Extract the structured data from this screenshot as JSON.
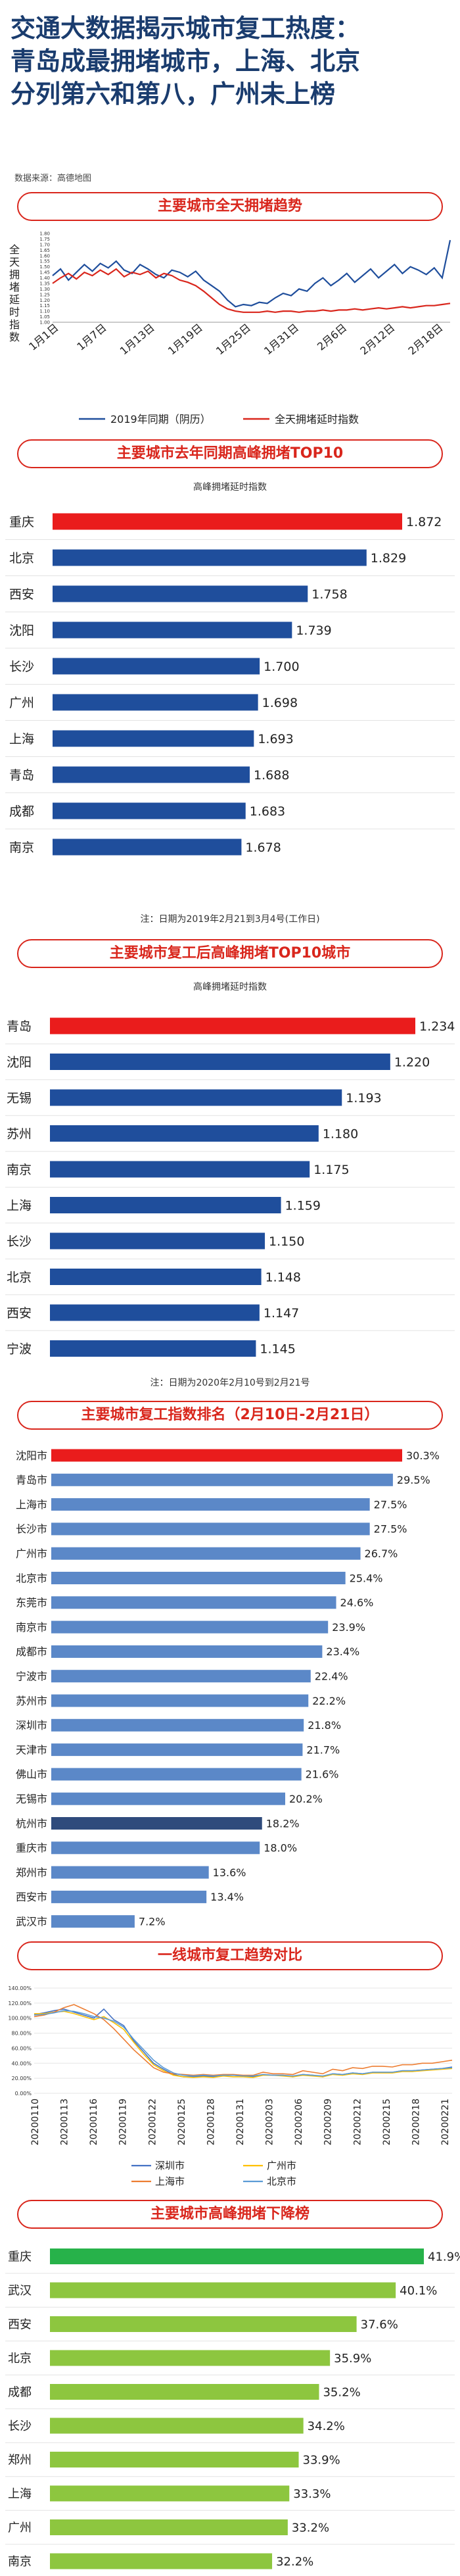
{
  "header": {
    "title_lines": [
      "交通大数据揭示城市复工热度：",
      "青岛成最拥堵城市，上海、北京",
      "分列第六和第八，广州未上榜"
    ],
    "source": "数据来源：高德地图"
  },
  "sections": {
    "trend": "主要城市全天拥堵趋势",
    "top10_last": "主要城市去年同期高峰拥堵TOP10",
    "top10_now": "主要城市复工后高峰拥堵TOP10城市",
    "resume": "主要城市复工指数排名（2月10日-2月21日）",
    "tier1": "一线城市复工趋势对比",
    "decline": "主要城市高峰拥堵下降榜"
  },
  "chart_data": [
    {
      "type": "line",
      "title": "主要城市全天拥堵趋势",
      "ylabel": "全天拥堵延时指数",
      "ylim": [
        1.0,
        1.8
      ],
      "yticks": [
        "1.00",
        "1.05",
        "1.10",
        "1.15",
        "1.20",
        "1.25",
        "1.30",
        "1.35",
        "1.40",
        "1.45",
        "1.50",
        "1.55",
        "1.60",
        "1.65",
        "1.70",
        "1.75",
        "1.80"
      ],
      "xticks": [
        "1月1日",
        "1月7日",
        "1月13日",
        "1月19日",
        "1月25日",
        "1月31日",
        "2月6日",
        "2月12日",
        "2月18日"
      ],
      "series": [
        {
          "name": "2019年同期（阴历）",
          "color": "#1f4e9c",
          "values": [
            1.42,
            1.48,
            1.38,
            1.45,
            1.52,
            1.46,
            1.53,
            1.49,
            1.55,
            1.47,
            1.44,
            1.52,
            1.48,
            1.43,
            1.4,
            1.47,
            1.45,
            1.41,
            1.46,
            1.38,
            1.33,
            1.28,
            1.2,
            1.14,
            1.16,
            1.15,
            1.18,
            1.17,
            1.22,
            1.26,
            1.24,
            1.3,
            1.28,
            1.35,
            1.4,
            1.33,
            1.38,
            1.44,
            1.36,
            1.42,
            1.48,
            1.4,
            1.46,
            1.52,
            1.44,
            1.5,
            1.47,
            1.43,
            1.49,
            1.4,
            1.74
          ]
        },
        {
          "name": "全天拥堵延时指数",
          "color": "#d9261c",
          "values": [
            1.35,
            1.4,
            1.44,
            1.39,
            1.45,
            1.42,
            1.47,
            1.43,
            1.48,
            1.41,
            1.45,
            1.43,
            1.46,
            1.4,
            1.44,
            1.42,
            1.38,
            1.36,
            1.33,
            1.28,
            1.22,
            1.16,
            1.12,
            1.1,
            1.09,
            1.09,
            1.09,
            1.1,
            1.09,
            1.1,
            1.1,
            1.09,
            1.1,
            1.1,
            1.11,
            1.1,
            1.11,
            1.11,
            1.12,
            1.11,
            1.12,
            1.13,
            1.12,
            1.13,
            1.14,
            1.13,
            1.14,
            1.15,
            1.15,
            1.16,
            1.17
          ]
        }
      ],
      "legend": "bottom"
    },
    {
      "type": "bar",
      "title": "主要城市去年同期高峰拥堵TOP10",
      "subtitle": "高峰拥堵延时指数",
      "note": "注：日期为2019年2月21到3月4号(工作日)",
      "categories": [
        "重庆",
        "北京",
        "西安",
        "沈阳",
        "长沙",
        "广州",
        "上海",
        "青岛",
        "成都",
        "南京"
      ],
      "values": [
        1.872,
        1.829,
        1.758,
        1.739,
        1.7,
        1.698,
        1.693,
        1.688,
        1.683,
        1.678
      ],
      "labels": [
        "1.872",
        "1.829",
        "1.758",
        "1.739",
        "1.700",
        "1.698",
        "1.693",
        "1.688",
        "1.683",
        "1.678"
      ],
      "highlight_color": "#ea1c1c",
      "bar_color": "#1f4e9c",
      "xlim": [
        1.45,
        1.872
      ]
    },
    {
      "type": "bar",
      "title": "主要城市复工后高峰拥堵TOP10城市",
      "subtitle": "高峰拥堵延时指数",
      "note": "注：日期为2020年2月10号到2月21号",
      "categories": [
        "青岛",
        "沈阳",
        "无锡",
        "苏州",
        "南京",
        "上海",
        "长沙",
        "北京",
        "西安",
        "宁波"
      ],
      "values": [
        1.234,
        1.22,
        1.193,
        1.18,
        1.175,
        1.159,
        1.15,
        1.148,
        1.147,
        1.145
      ],
      "labels": [
        "1.234",
        "1.220",
        "1.193",
        "1.180",
        "1.175",
        "1.159",
        "1.150",
        "1.148",
        "1.147",
        "1.145"
      ],
      "highlight_color": "#ea1c1c",
      "bar_color": "#1f4e9c",
      "xlim": [
        1.03,
        1.234
      ]
    },
    {
      "type": "bar",
      "title": "主要城市复工指数排名（2月10日-2月21日）",
      "categories": [
        "沈阳市",
        "青岛市",
        "上海市",
        "长沙市",
        "广州市",
        "北京市",
        "东莞市",
        "南京市",
        "成都市",
        "宁波市",
        "苏州市",
        "深圳市",
        "天津市",
        "佛山市",
        "无锡市",
        "杭州市",
        "重庆市",
        "郑州市",
        "西安市",
        "武汉市"
      ],
      "values": [
        30.3,
        29.5,
        27.5,
        27.5,
        26.7,
        25.4,
        24.6,
        23.9,
        23.4,
        22.4,
        22.2,
        21.8,
        21.7,
        21.6,
        20.2,
        18.2,
        18.0,
        13.6,
        13.4,
        7.2
      ],
      "labels": [
        "30.3%",
        "29.5%",
        "27.5%",
        "27.5%",
        "26.7%",
        "25.4%",
        "24.6%",
        "23.9%",
        "23.4%",
        "22.4%",
        "22.2%",
        "21.8%",
        "21.7%",
        "21.6%",
        "20.2%",
        "18.2%",
        "18.0%",
        "13.6%",
        "13.4%",
        "7.2%"
      ],
      "highlight_color": "#ea1c1c",
      "dark_color": "#2f4b7c",
      "bar_color": "#5b88c8",
      "xlim": [
        0,
        30.3
      ]
    },
    {
      "type": "line",
      "title": "一线城市复工趋势对比",
      "ylim": [
        0,
        140
      ],
      "yticks": [
        "0.00%",
        "20.00%",
        "40.00%",
        "60.00%",
        "80.00%",
        "100.00%",
        "120.00%",
        "140.00%"
      ],
      "xticks": [
        "20200110",
        "20200113",
        "20200116",
        "20200119",
        "20200122",
        "20200125",
        "20200128",
        "20200131",
        "20200203",
        "20200206",
        "20200209",
        "20200212",
        "20200215",
        "20200218",
        "20200221"
      ],
      "series": [
        {
          "name": "深圳市",
          "color": "#4472c4",
          "values": [
            105,
            107,
            110,
            112,
            108,
            104,
            100,
            112,
            98,
            90,
            70,
            55,
            40,
            32,
            25,
            22,
            22,
            23,
            22,
            24,
            24,
            23,
            22,
            25,
            24,
            24,
            22,
            25,
            24,
            22,
            26,
            25,
            27,
            26,
            28,
            28,
            28,
            30,
            30,
            31,
            32,
            33,
            35
          ]
        },
        {
          "name": "广州市",
          "color": "#ffc000",
          "values": [
            106,
            106,
            108,
            109,
            106,
            102,
            98,
            102,
            94,
            85,
            68,
            52,
            38,
            30,
            24,
            22,
            21,
            22,
            21,
            23,
            22,
            22,
            21,
            24,
            24,
            23,
            22,
            24,
            23,
            22,
            25,
            24,
            26,
            25,
            27,
            27,
            27,
            29,
            29,
            30,
            31,
            32,
            33
          ]
        },
        {
          "name": "上海市",
          "color": "#ed7d31",
          "values": [
            102,
            104,
            108,
            114,
            118,
            112,
            106,
            98,
            86,
            72,
            58,
            46,
            34,
            28,
            26,
            25,
            24,
            25,
            24,
            25,
            25,
            24,
            24,
            28,
            26,
            26,
            25,
            30,
            28,
            26,
            32,
            30,
            34,
            33,
            36,
            36,
            35,
            38,
            38,
            40,
            40,
            42,
            44
          ]
        },
        {
          "name": "北京市",
          "color": "#5b9bd5",
          "values": [
            104,
            105,
            107,
            110,
            109,
            106,
            102,
            100,
            96,
            88,
            72,
            58,
            44,
            34,
            27,
            24,
            23,
            24,
            23,
            24,
            24,
            23,
            23,
            25,
            24,
            24,
            23,
            25,
            24,
            23,
            26,
            25,
            27,
            26,
            28,
            28,
            28,
            30,
            30,
            31,
            32,
            33,
            34
          ]
        }
      ],
      "legend": "bottom"
    },
    {
      "type": "bar",
      "title": "主要城市高峰拥堵下降榜",
      "categories": [
        "重庆",
        "武汉",
        "西安",
        "北京",
        "成都",
        "长沙",
        "郑州",
        "上海",
        "广州",
        "南京"
      ],
      "values": [
        41.9,
        40.1,
        37.6,
        35.9,
        35.2,
        34.2,
        33.9,
        33.3,
        33.2,
        32.2
      ],
      "labels": [
        "41.9%",
        "40.1%",
        "37.6%",
        "35.9%",
        "35.2%",
        "34.2%",
        "33.9%",
        "33.3%",
        "33.2%",
        "32.2%"
      ],
      "highlight_color": "#27b24a",
      "bar_color": "#8dc63f",
      "xlim": [
        18,
        41.9
      ]
    }
  ]
}
